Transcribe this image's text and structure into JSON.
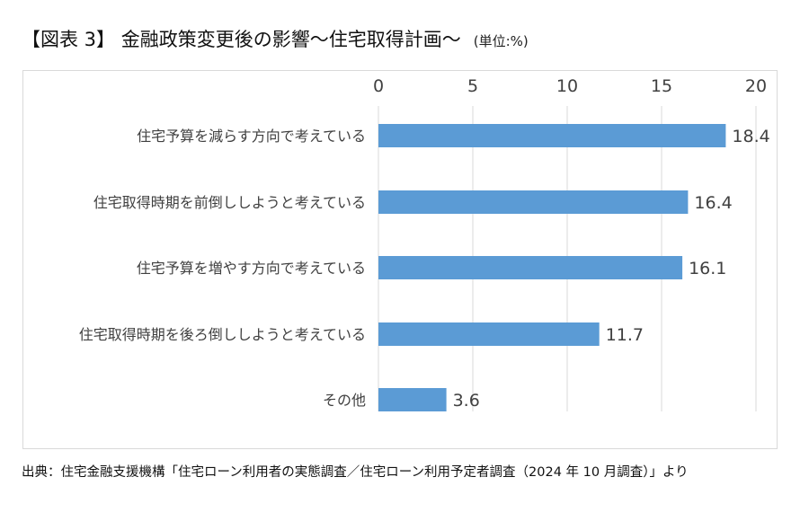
{
  "title": "【図表 3】 金融政策変更後の影響～住宅取得計画～",
  "unit": "(単位:%)",
  "source": "出典：住宅金融支援機構「住宅ローン利用者の実態調査／住宅ローン利用予定者調査（2024 年 10 月調査）」より",
  "colors": {
    "bar": "#5b9bd5",
    "grid": "#d9d9d9",
    "text": "#404040"
  },
  "chart_data": {
    "type": "bar",
    "orientation": "horizontal",
    "title": "金融政策変更後の影響～住宅取得計画～",
    "categories": [
      "住宅予算を減らす方向で考えている",
      "住宅取得時期を前倒ししようと考えている",
      "住宅予算を増やす方向で考えている",
      "住宅取得時期を後ろ倒ししようと考えている",
      "その他"
    ],
    "values": [
      18.4,
      16.4,
      16.1,
      11.7,
      3.6
    ],
    "value_labels": [
      "18.4",
      "16.4",
      "16.1",
      "11.7",
      "3.6"
    ],
    "xlim": [
      0,
      20
    ],
    "x_ticks": [
      0,
      5,
      10,
      15,
      20
    ],
    "x_axis_position": "top",
    "grid": true,
    "legend": "none"
  }
}
